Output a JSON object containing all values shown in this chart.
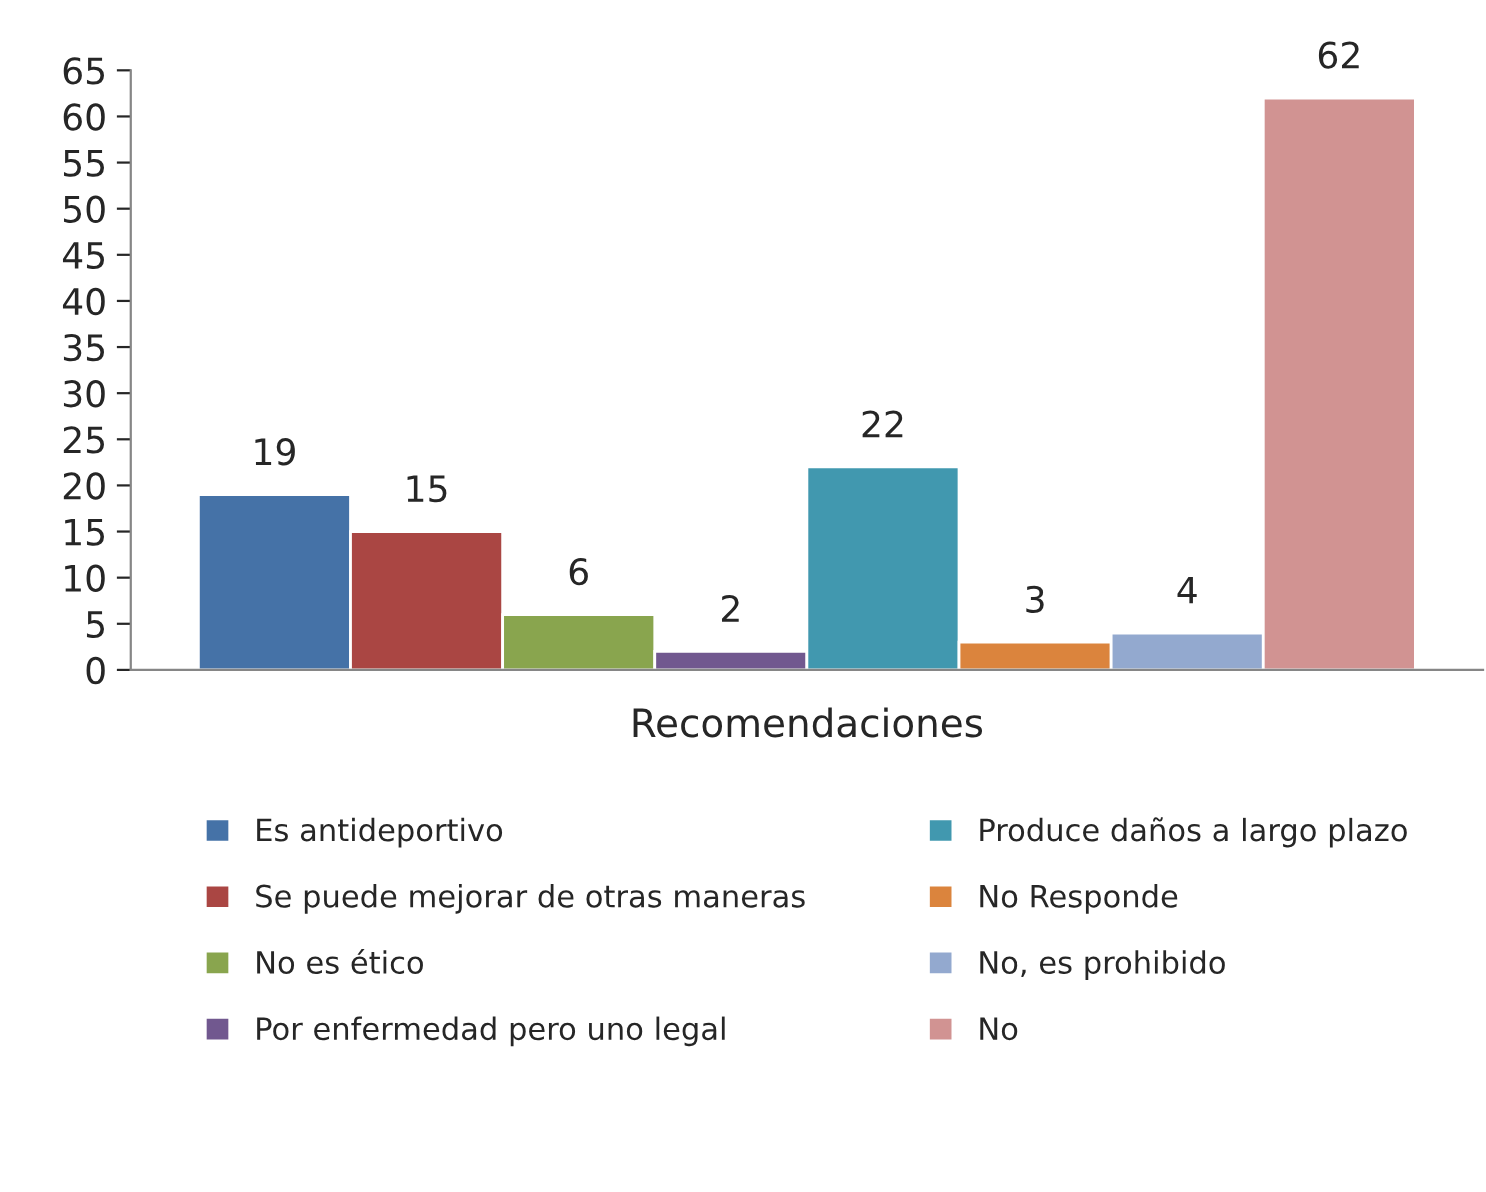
{
  "chart_data": {
    "type": "bar",
    "xlabel": "Recomendaciones",
    "categories": [
      null
    ],
    "series": [
      {
        "name": "Es antideportivo",
        "color": "#4572a7",
        "values": [
          19
        ]
      },
      {
        "name": "Se puede mejorar de otras maneras",
        "color": "#aa4643",
        "values": [
          15
        ]
      },
      {
        "name": "No es ético",
        "color": "#89a54e",
        "values": [
          6
        ]
      },
      {
        "name": "Por enfermedad pero uno legal",
        "color": "#71588f",
        "values": [
          2
        ]
      },
      {
        "name": "Produce daños a largo plazo",
        "color": "#4198af",
        "values": [
          22
        ]
      },
      {
        "name": "No Responde",
        "color": "#db843d",
        "values": [
          3
        ]
      },
      {
        "name": "No, es prohibido",
        "color": "#93a9cf",
        "values": [
          4
        ]
      },
      {
        "name": "No",
        "color": "#d19392",
        "values": [
          62
        ]
      }
    ],
    "ylim": [
      0,
      65
    ],
    "yticks": [
      0,
      5,
      10,
      15,
      20,
      25,
      30,
      35,
      40,
      45,
      50,
      55,
      60,
      65
    ],
    "grid": false,
    "legend": "bottom",
    "data_labels": true
  }
}
